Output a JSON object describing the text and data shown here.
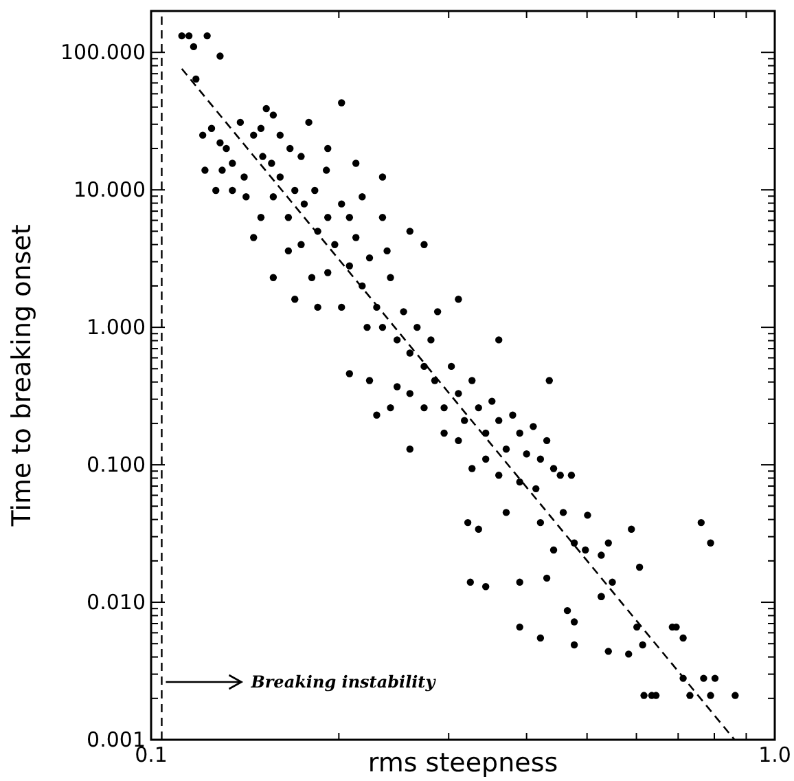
{
  "chart_data": {
    "type": "scatter",
    "xlabel": "rms steepness",
    "ylabel": "Time to breaking onset",
    "log": "xy",
    "xlim": [
      0.1,
      1
    ],
    "ylim": [
      0.001,
      200
    ],
    "xticks": [
      {
        "value": 0.1,
        "label": "0.1"
      },
      {
        "value": 0.2,
        "label": null
      },
      {
        "value": 0.3,
        "label": null
      },
      {
        "value": 0.4,
        "label": null
      },
      {
        "value": 0.5,
        "label": null
      },
      {
        "value": 0.6,
        "label": null
      },
      {
        "value": 0.7,
        "label": null
      },
      {
        "value": 0.8,
        "label": null
      },
      {
        "value": 0.9,
        "label": null
      },
      {
        "value": 1,
        "label": "1.0"
      }
    ],
    "yticks": [
      {
        "value": 0.001,
        "label": "0.001"
      },
      {
        "value": 0.002,
        "label": null
      },
      {
        "value": 0.003,
        "label": null
      },
      {
        "value": 0.004,
        "label": null
      },
      {
        "value": 0.005,
        "label": null
      },
      {
        "value": 0.006,
        "label": null
      },
      {
        "value": 0.007,
        "label": null
      },
      {
        "value": 0.008,
        "label": null
      },
      {
        "value": 0.009,
        "label": null
      },
      {
        "value": 0.01,
        "label": "0.010"
      },
      {
        "value": 0.02,
        "label": null
      },
      {
        "value": 0.03,
        "label": null
      },
      {
        "value": 0.04,
        "label": null
      },
      {
        "value": 0.05,
        "label": null
      },
      {
        "value": 0.06,
        "label": null
      },
      {
        "value": 0.07,
        "label": null
      },
      {
        "value": 0.08,
        "label": null
      },
      {
        "value": 0.09,
        "label": null
      },
      {
        "value": 0.1,
        "label": "0.100"
      },
      {
        "value": 0.2,
        "label": null
      },
      {
        "value": 0.3,
        "label": null
      },
      {
        "value": 0.4,
        "label": null
      },
      {
        "value": 0.5,
        "label": null
      },
      {
        "value": 0.6,
        "label": null
      },
      {
        "value": 0.7,
        "label": null
      },
      {
        "value": 0.8,
        "label": null
      },
      {
        "value": 0.9,
        "label": null
      },
      {
        "value": 1,
        "label": "1.000"
      },
      {
        "value": 2,
        "label": null
      },
      {
        "value": 3,
        "label": null
      },
      {
        "value": 4,
        "label": null
      },
      {
        "value": 5,
        "label": null
      },
      {
        "value": 6,
        "label": null
      },
      {
        "value": 7,
        "label": null
      },
      {
        "value": 8,
        "label": null
      },
      {
        "value": 9,
        "label": null
      },
      {
        "value": 10,
        "label": "10.000"
      },
      {
        "value": 20,
        "label": null
      },
      {
        "value": 30,
        "label": null
      },
      {
        "value": 40,
        "label": null
      },
      {
        "value": 50,
        "label": null
      },
      {
        "value": 60,
        "label": null
      },
      {
        "value": 70,
        "label": null
      },
      {
        "value": 80,
        "label": null
      },
      {
        "value": 90,
        "label": null
      },
      {
        "value": 100,
        "label": "100.000"
      },
      {
        "value": 200,
        "label": null
      }
    ],
    "series": [
      {
        "color": "#000000",
        "marker": "circle",
        "x": [
          0.112,
          0.115,
          0.117,
          0.123,
          0.129,
          0.118,
          0.121,
          0.125,
          0.129,
          0.132,
          0.122,
          0.13,
          0.135,
          0.139,
          0.141,
          0.127,
          0.135,
          0.142,
          0.146,
          0.15,
          0.153,
          0.157,
          0.161,
          0.151,
          0.156,
          0.161,
          0.167,
          0.174,
          0.17,
          0.157,
          0.15,
          0.166,
          0.176,
          0.183,
          0.191,
          0.185,
          0.174,
          0.166,
          0.192,
          0.197,
          0.202,
          0.208,
          0.192,
          0.181,
          0.213,
          0.218,
          0.202,
          0.224,
          0.23,
          0.235,
          0.242,
          0.248,
          0.254,
          0.26,
          0.267,
          0.274,
          0.281,
          0.285,
          0.26,
          0.248,
          0.242,
          0.288,
          0.295,
          0.303,
          0.311,
          0.318,
          0.327,
          0.335,
          0.344,
          0.352,
          0.361,
          0.371,
          0.38,
          0.39,
          0.4,
          0.41,
          0.421,
          0.431,
          0.442,
          0.453,
          0.414,
          0.39,
          0.361,
          0.344,
          0.327,
          0.311,
          0.295,
          0.274,
          0.26,
          0.23,
          0.208,
          0.224,
          0.185,
          0.17,
          0.157,
          0.146,
          0.202,
          0.235,
          0.26,
          0.274,
          0.311,
          0.361,
          0.435,
          0.472,
          0.458,
          0.501,
          0.421,
          0.371,
          0.335,
          0.322,
          0.325,
          0.344,
          0.39,
          0.431,
          0.442,
          0.477,
          0.497,
          0.527,
          0.541,
          0.549,
          0.589,
          0.607,
          0.527,
          0.527,
          0.601,
          0.465,
          0.477,
          0.39,
          0.421,
          0.477,
          0.541,
          0.583,
          0.614,
          0.685,
          0.695,
          0.713,
          0.769,
          0.802,
          0.617,
          0.645,
          0.731,
          0.789,
          0.864,
          0.713,
          0.762,
          0.789,
          0.635,
          0.179,
          0.192,
          0.213,
          0.218,
          0.208,
          0.235,
          0.239,
          0.222
        ],
        "values": [
          132,
          132,
          110,
          132,
          94,
          64,
          25,
          28,
          22,
          20,
          13.9,
          13.9,
          15.6,
          31,
          12.4,
          9.9,
          9.9,
          8.9,
          25,
          28,
          39,
          35,
          25,
          17.5,
          15.6,
          12.4,
          20,
          17.5,
          9.9,
          8.9,
          6.3,
          6.3,
          7.9,
          9.9,
          13.9,
          5.0,
          4.0,
          3.6,
          6.3,
          4.0,
          7.9,
          2.8,
          2.5,
          2.3,
          4.5,
          2.0,
          1.4,
          3.2,
          1.4,
          1.0,
          2.3,
          0.81,
          1.3,
          0.65,
          1.0,
          0.52,
          0.81,
          0.41,
          0.33,
          0.37,
          0.26,
          1.3,
          0.26,
          0.52,
          0.33,
          0.21,
          0.41,
          0.26,
          0.17,
          0.29,
          0.21,
          0.13,
          0.23,
          0.17,
          0.12,
          0.19,
          0.11,
          0.15,
          0.094,
          0.084,
          0.067,
          0.075,
          0.084,
          0.11,
          0.094,
          0.15,
          0.17,
          0.26,
          0.13,
          0.23,
          0.46,
          0.41,
          1.4,
          1.6,
          2.3,
          4.5,
          43,
          12.4,
          5.0,
          4.0,
          1.6,
          0.81,
          0.41,
          0.084,
          0.045,
          0.043,
          0.038,
          0.045,
          0.034,
          0.038,
          0.014,
          0.013,
          0.014,
          0.015,
          0.024,
          0.027,
          0.024,
          0.022,
          0.027,
          0.014,
          0.034,
          0.018,
          0.011,
          0.011,
          0.0066,
          0.0087,
          0.0072,
          0.0066,
          0.0055,
          0.0049,
          0.0044,
          0.0042,
          0.0049,
          0.0066,
          0.0066,
          0.0028,
          0.0028,
          0.0028,
          0.0021,
          0.0021,
          0.0021,
          0.0021,
          0.0021,
          0.0055,
          0.038,
          0.027,
          0.0021,
          31,
          20,
          15.6,
          8.9,
          6.3,
          6.3,
          3.6,
          1.0
        ]
      },
      {
        "type": "line",
        "color": "#000000",
        "line_style": "dashed",
        "x": [
          0.112,
          0.862
        ],
        "values": [
          76,
          0.001
        ]
      }
    ],
    "ref_lines": [
      {
        "axis": "x",
        "value": 0.104,
        "line_style": "dashed",
        "color": "#000000"
      }
    ],
    "annotations": [
      "Breaking instability"
    ]
  }
}
